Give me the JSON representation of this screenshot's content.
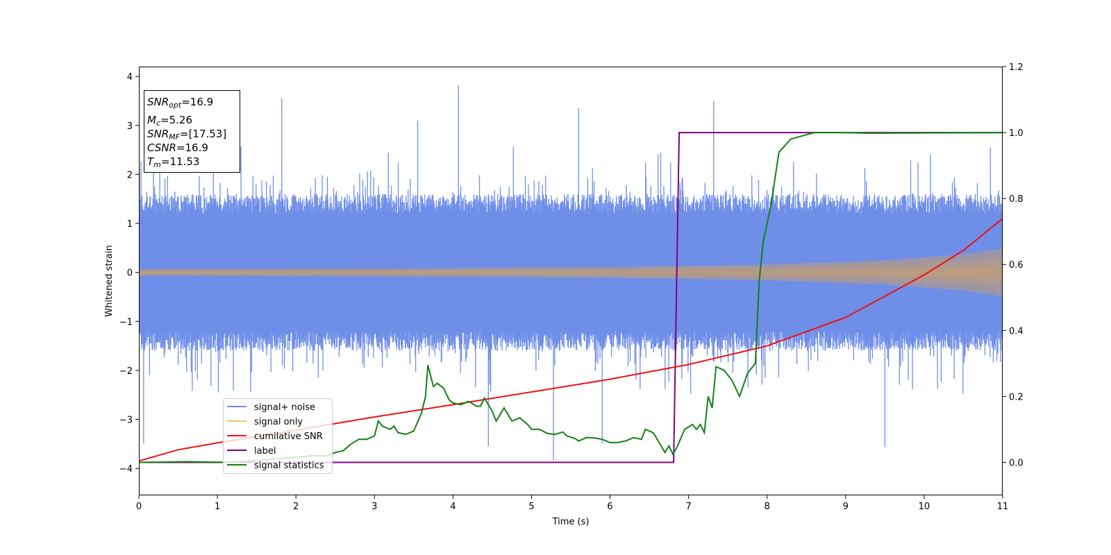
{
  "chart_data": {
    "type": "line",
    "xlabel": "Time (s)",
    "ylabel": "Whitened strain",
    "xlim": [
      0,
      11
    ],
    "ylim": [
      -4.55,
      4.2
    ],
    "y2lim": [
      -0.1,
      1.2
    ],
    "x_ticks": [
      "0",
      "1",
      "2",
      "3",
      "4",
      "5",
      "6",
      "7",
      "8",
      "9",
      "10",
      "11"
    ],
    "y_ticks": [
      "−4",
      "−3",
      "−2",
      "−1",
      "0",
      "1",
      "2",
      "3",
      "4"
    ],
    "y2_ticks": [
      "0.0",
      "0.2",
      "0.4",
      "0.6",
      "0.8",
      "1.0",
      "1.2"
    ],
    "grid": false,
    "legend_placement": "lower-left",
    "info_box": {
      "snr_opt": {
        "sym": "SNR",
        "sub": "opt",
        "val": "=16.9"
      },
      "mc": {
        "sym": "M",
        "sub": "c",
        "val": "=5.26"
      },
      "snr_mf": {
        "sym": "SNR",
        "sub": "MF",
        "val": "=[17.53]"
      },
      "csnr": {
        "sym": "CSNR",
        "sub": "",
        "val": "=16.9"
      },
      "tm": {
        "sym": "T",
        "sub": "m",
        "val": "=11.53"
      }
    },
    "series": [
      {
        "name": "signal+ noise",
        "color": "#6f8ee8",
        "axis": "left",
        "kind": "noise",
        "description_values": {
          "sigma": 0.9,
          "spike_max": [
            [
              4.07,
              3.82
            ],
            [
              1.82,
              3.55
            ],
            [
              7.32,
              3.5
            ],
            [
              3.55,
              3.1
            ],
            [
              5.6,
              3.35
            ]
          ],
          "spike_min": [
            [
              5.28,
              -3.83
            ],
            [
              9.5,
              -3.57
            ],
            [
              0.06,
              -3.49
            ],
            [
              4.45,
              -3.55
            ],
            [
              5.9,
              -3.5
            ]
          ]
        }
      },
      {
        "name": "signal only",
        "color": "#f5c26b",
        "axis": "left",
        "kind": "chirp",
        "amplitude": [
          [
            0,
            0.07
          ],
          [
            3,
            0.08
          ],
          [
            6,
            0.11
          ],
          [
            8,
            0.16
          ],
          [
            9.5,
            0.25
          ],
          [
            10.5,
            0.37
          ],
          [
            11,
            0.49
          ]
        ]
      },
      {
        "name": "cumilative SNR",
        "color": "#ee1111",
        "axis": "left",
        "points": [
          [
            0,
            -3.85
          ],
          [
            0.5,
            -3.62
          ],
          [
            1,
            -3.48
          ],
          [
            2,
            -3.22
          ],
          [
            3,
            -2.95
          ],
          [
            4,
            -2.7
          ],
          [
            5,
            -2.44
          ],
          [
            6,
            -2.18
          ],
          [
            7,
            -1.88
          ],
          [
            8,
            -1.5
          ],
          [
            9,
            -0.92
          ],
          [
            10,
            -0.05
          ],
          [
            10.5,
            0.45
          ],
          [
            11,
            1.1
          ]
        ]
      },
      {
        "name": "label",
        "color": "#800080",
        "axis": "right",
        "points": [
          [
            0,
            0.0
          ],
          [
            6.81,
            0.0
          ],
          [
            6.88,
            1.0
          ],
          [
            11,
            1.0
          ]
        ]
      },
      {
        "name": "signal statistics",
        "color": "#138013",
        "axis": "right",
        "points": [
          [
            0,
            0.0
          ],
          [
            0.6,
            0.002
          ],
          [
            1.2,
            0.0
          ],
          [
            1.7,
            0.01
          ],
          [
            2.0,
            0.015
          ],
          [
            2.2,
            0.02
          ],
          [
            2.4,
            0.02
          ],
          [
            2.5,
            0.03
          ],
          [
            2.6,
            0.035
          ],
          [
            2.7,
            0.055
          ],
          [
            2.8,
            0.07
          ],
          [
            2.9,
            0.07
          ],
          [
            3.0,
            0.08
          ],
          [
            3.05,
            0.125
          ],
          [
            3.1,
            0.11
          ],
          [
            3.2,
            0.1
          ],
          [
            3.25,
            0.11
          ],
          [
            3.3,
            0.09
          ],
          [
            3.4,
            0.085
          ],
          [
            3.5,
            0.095
          ],
          [
            3.6,
            0.15
          ],
          [
            3.65,
            0.2
          ],
          [
            3.68,
            0.295
          ],
          [
            3.75,
            0.23
          ],
          [
            3.8,
            0.24
          ],
          [
            3.88,
            0.225
          ],
          [
            3.95,
            0.19
          ],
          [
            4.0,
            0.18
          ],
          [
            4.1,
            0.175
          ],
          [
            4.2,
            0.185
          ],
          [
            4.3,
            0.17
          ],
          [
            4.35,
            0.17
          ],
          [
            4.4,
            0.195
          ],
          [
            4.5,
            0.155
          ],
          [
            4.55,
            0.125
          ],
          [
            4.65,
            0.165
          ],
          [
            4.75,
            0.125
          ],
          [
            4.85,
            0.135
          ],
          [
            4.95,
            0.115
          ],
          [
            5.0,
            0.1
          ],
          [
            5.1,
            0.1
          ],
          [
            5.2,
            0.088
          ],
          [
            5.3,
            0.085
          ],
          [
            5.4,
            0.092
          ],
          [
            5.45,
            0.08
          ],
          [
            5.55,
            0.073
          ],
          [
            5.6,
            0.065
          ],
          [
            5.7,
            0.075
          ],
          [
            5.8,
            0.074
          ],
          [
            5.9,
            0.07
          ],
          [
            6.0,
            0.06
          ],
          [
            6.1,
            0.06
          ],
          [
            6.2,
            0.065
          ],
          [
            6.3,
            0.075
          ],
          [
            6.4,
            0.07
          ],
          [
            6.45,
            0.1
          ],
          [
            6.55,
            0.09
          ],
          [
            6.6,
            0.07
          ],
          [
            6.7,
            0.03
          ],
          [
            6.75,
            0.05
          ],
          [
            6.8,
            0.025
          ],
          [
            6.85,
            0.045
          ],
          [
            6.95,
            0.1
          ],
          [
            7.05,
            0.115
          ],
          [
            7.1,
            0.1
          ],
          [
            7.15,
            0.115
          ],
          [
            7.2,
            0.09
          ],
          [
            7.25,
            0.2
          ],
          [
            7.3,
            0.165
          ],
          [
            7.35,
            0.29
          ],
          [
            7.45,
            0.28
          ],
          [
            7.55,
            0.25
          ],
          [
            7.65,
            0.2
          ],
          [
            7.75,
            0.27
          ],
          [
            7.85,
            0.3
          ],
          [
            7.9,
            0.55
          ],
          [
            7.95,
            0.67
          ],
          [
            8.05,
            0.78
          ],
          [
            8.15,
            0.94
          ],
          [
            8.3,
            0.98
          ],
          [
            8.45,
            0.99
          ],
          [
            8.6,
            1.0
          ],
          [
            9.0,
            1.0
          ],
          [
            9.3,
            0.998
          ],
          [
            11,
            1.0
          ]
        ]
      }
    ]
  }
}
